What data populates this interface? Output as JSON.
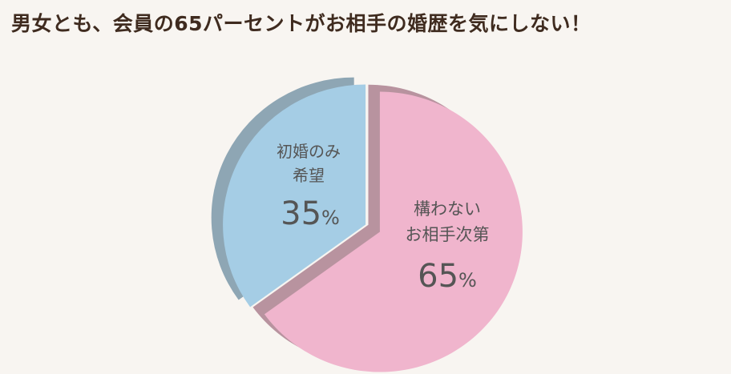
{
  "colors": {
    "background": "#f8f5f1",
    "title_text": "#3f2b1f",
    "pink_top": "#f0b5cd",
    "pink_side": "#b8939f",
    "blue_top": "#a5cde5",
    "blue_side": "#8ea6b4",
    "label_text": "#555555"
  },
  "chart_data": {
    "type": "pie",
    "title": "男女とも、会員の65パーセントがお相手の婚歴を気にしない！",
    "unit": "%",
    "slices": [
      {
        "label_lines": [
          "構わない",
          "お相手次第"
        ],
        "value": 65,
        "value_text": "65",
        "color": "#f0b5cd",
        "side_color": "#b8939f"
      },
      {
        "label_lines": [
          "初婚のみ",
          "希望"
        ],
        "value": 35,
        "value_text": "35",
        "color": "#a5cde5",
        "side_color": "#8ea6b4"
      }
    ]
  }
}
